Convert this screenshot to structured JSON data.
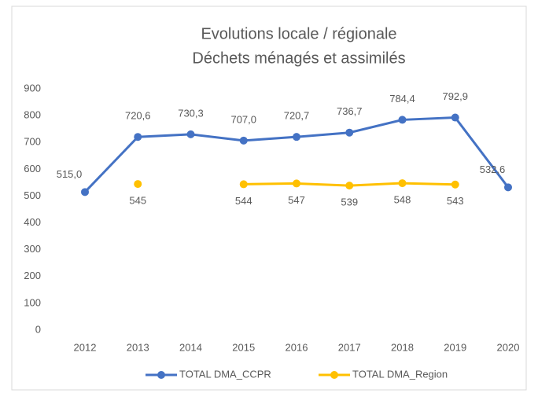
{
  "chart_data": {
    "type": "line",
    "title": [
      "Evolutions locale / régionale",
      "Déchets ménagés et assimilés"
    ],
    "categories": [
      "2012",
      "2013",
      "2014",
      "2015",
      "2016",
      "2017",
      "2018",
      "2019",
      "2020"
    ],
    "series": [
      {
        "name": "TOTAL DMA_CCPR",
        "color": "#4472c4",
        "values": [
          515.0,
          720.6,
          730.3,
          707.0,
          720.7,
          736.7,
          784.4,
          792.9,
          532.6
        ],
        "value_labels": [
          "515,0",
          "720,6",
          "730,3",
          "707,0",
          "720,7",
          "736,7",
          "784,4",
          "792,9",
          "532,6"
        ]
      },
      {
        "name": "TOTAL DMA_Region",
        "color": "#ffc000",
        "values": [
          null,
          545,
          null,
          544,
          547,
          539,
          548,
          543,
          null
        ]
      }
    ],
    "ylim": [
      0,
      900
    ],
    "yticks": [
      0,
      100,
      200,
      300,
      400,
      500,
      600,
      700,
      800,
      900
    ],
    "grid": false,
    "legend": "bottom"
  }
}
